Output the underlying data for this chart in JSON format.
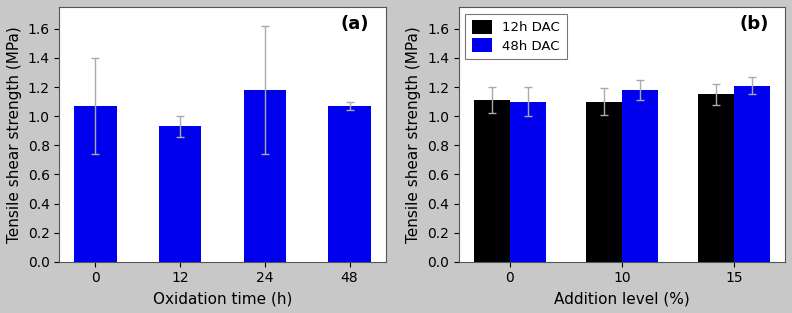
{
  "panel_a": {
    "categories": [
      "0",
      "12",
      "24",
      "48"
    ],
    "values": [
      1.07,
      0.93,
      1.18,
      1.07
    ],
    "errors": [
      0.33,
      0.07,
      0.44,
      0.03
    ],
    "bar_color": "#0000EE",
    "xlabel": "Oxidation time (h)",
    "ylabel": "Tensile shear strength (MPa)",
    "ylim": [
      0.0,
      1.75
    ],
    "yticks": [
      0.0,
      0.2,
      0.4,
      0.6,
      0.8,
      1.0,
      1.2,
      1.4,
      1.6
    ],
    "label": "(a)",
    "bar_width": 0.5
  },
  "panel_b": {
    "categories": [
      "0",
      "10",
      "15"
    ],
    "values_12h": [
      1.11,
      1.1,
      1.15
    ],
    "values_48h": [
      1.1,
      1.18,
      1.21
    ],
    "errors_12h": [
      0.09,
      0.09,
      0.07
    ],
    "errors_48h": [
      0.1,
      0.07,
      0.06
    ],
    "color_12h": "#000000",
    "color_48h": "#0000EE",
    "xlabel": "Addition level (%)",
    "ylabel": "Tensile shear strength (MPa)",
    "ylim": [
      0.0,
      1.75
    ],
    "yticks": [
      0.0,
      0.2,
      0.4,
      0.6,
      0.8,
      1.0,
      1.2,
      1.4,
      1.6
    ],
    "label": "(b)",
    "legend_labels": [
      "12h DAC",
      "48h DAC"
    ],
    "bar_width": 0.32
  },
  "fig_background": "#c8c8c8",
  "ax_background": "#ffffff",
  "capsize": 3,
  "error_color": "#aaaaaa",
  "tick_fontsize": 10,
  "label_fontsize": 11,
  "panel_label_fontsize": 13
}
